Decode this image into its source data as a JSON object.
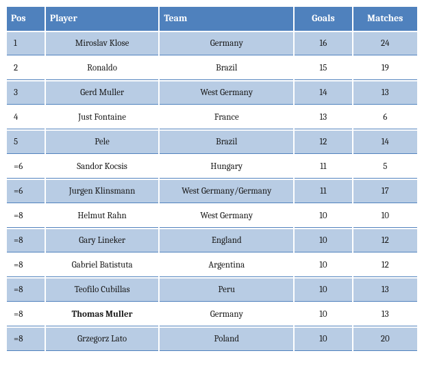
{
  "table": {
    "header_bg": "#4f81bd",
    "header_color": "#ffffff",
    "row_odd_bg": "#b8cce4",
    "row_even_bg": "#ffffff",
    "border_color": "#4f81bd",
    "columns": [
      {
        "key": "pos",
        "label": "Pos",
        "align": "left"
      },
      {
        "key": "player",
        "label": "Player",
        "align": "left"
      },
      {
        "key": "team",
        "label": "Team",
        "align": "left"
      },
      {
        "key": "goals",
        "label": "Goals",
        "align": "center"
      },
      {
        "key": "matches",
        "label": "Matches",
        "align": "center"
      }
    ],
    "rows": [
      {
        "pos": "1",
        "player": "Miroslav Klose",
        "team": "Germany",
        "goals": "16",
        "matches": "24",
        "bold": false
      },
      {
        "pos": "2",
        "player": "Ronaldo",
        "team": "Brazil",
        "goals": "15",
        "matches": "19",
        "bold": false
      },
      {
        "pos": "3",
        "player": "Gerd Muller",
        "team": "West Germany",
        "goals": "14",
        "matches": "13",
        "bold": false
      },
      {
        "pos": "4",
        "player": "Just Fontaine",
        "team": "France",
        "goals": "13",
        "matches": "6",
        "bold": false
      },
      {
        "pos": "5",
        "player": "Pele",
        "team": "Brazil",
        "goals": "12",
        "matches": "14",
        "bold": false
      },
      {
        "pos": "=6",
        "player": "Sandor Kocsis",
        "team": "Hungary",
        "goals": "11",
        "matches": "5",
        "bold": false
      },
      {
        "pos": "=6",
        "player": "Jurgen Klinsmann",
        "team": "West Germany/Germany",
        "goals": "11",
        "matches": "17",
        "bold": false
      },
      {
        "pos": "=8",
        "player": "Helmut Rahn",
        "team": "West Germany",
        "goals": "10",
        "matches": "10",
        "bold": false
      },
      {
        "pos": "=8",
        "player": "Gary Lineker",
        "team": "England",
        "goals": "10",
        "matches": "12",
        "bold": false
      },
      {
        "pos": "=8",
        "player": "Gabriel Batistuta",
        "team": "Argentina",
        "goals": "10",
        "matches": "12",
        "bold": false
      },
      {
        "pos": "=8",
        "player": "Teofilo Cubillas",
        "team": "Peru",
        "goals": "10",
        "matches": "13",
        "bold": false
      },
      {
        "pos": "=8",
        "player": "Thomas Muller",
        "team": "Germany",
        "goals": "10",
        "matches": "13",
        "bold": true
      },
      {
        "pos": "=8",
        "player": "Grzegorz Lato",
        "team": "Poland",
        "goals": "10",
        "matches": "20",
        "bold": false
      }
    ]
  }
}
